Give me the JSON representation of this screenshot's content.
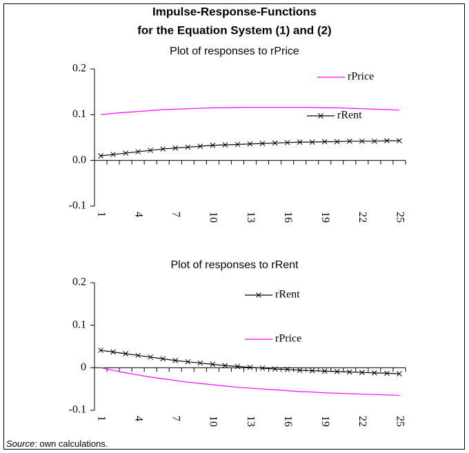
{
  "title": [
    "Impulse-Response-Functions",
    "for the Equation System (1) and (2)"
  ],
  "source": {
    "label": "Source",
    "text": ": own calculations."
  },
  "chart_data": [
    {
      "type": "line",
      "subtitle": "Plot of responses to rPrice",
      "categories": [
        "1",
        null,
        null,
        "4",
        null,
        null,
        "7",
        null,
        null,
        "10",
        null,
        null,
        "13",
        null,
        null,
        "16",
        null,
        null,
        "19",
        null,
        null,
        "22",
        null,
        null,
        "25"
      ],
      "ylim": [
        -0.1,
        0.2
      ],
      "yticks": [
        0.2,
        0.1,
        {
          "value": 0,
          "label": "0.0"
        },
        -0.1
      ],
      "series": [
        {
          "name": "rPrice",
          "color": "#ff00ff",
          "marker": "none",
          "values": [
            0.1,
            0.103,
            0.105,
            0.107,
            0.109,
            0.111,
            0.112,
            0.113,
            0.114,
            0.115,
            0.115,
            0.116,
            0.116,
            0.116,
            0.116,
            0.116,
            0.116,
            0.116,
            0.115,
            0.115,
            0.114,
            0.113,
            0.112,
            0.111,
            0.11
          ]
        },
        {
          "name": "rRent",
          "color": "#000000",
          "marker": "x",
          "values": [
            0.01,
            0.013,
            0.016,
            0.019,
            0.022,
            0.025,
            0.027,
            0.029,
            0.031,
            0.033,
            0.034,
            0.035,
            0.036,
            0.037,
            0.038,
            0.039,
            0.04,
            0.04,
            0.041,
            0.041,
            0.042,
            0.042,
            0.042,
            0.043,
            0.043
          ]
        }
      ]
    },
    {
      "type": "line",
      "subtitle": "Plot of responses to rRent",
      "categories": [
        "1",
        null,
        null,
        "4",
        null,
        null,
        "7",
        null,
        null,
        "10",
        null,
        null,
        "13",
        null,
        null,
        "16",
        null,
        null,
        "19",
        null,
        null,
        "22",
        null,
        null,
        "25"
      ],
      "ylim": [
        -0.1,
        0.2
      ],
      "yticks": [
        0.2,
        0.1,
        0,
        -0.1
      ],
      "series": [
        {
          "name": "rRent",
          "color": "#000000",
          "marker": "x",
          "values": [
            0.041,
            0.037,
            0.033,
            0.029,
            0.025,
            0.021,
            0.017,
            0.014,
            0.011,
            0.008,
            0.005,
            0.003,
            0.001,
            -0.001,
            -0.003,
            -0.004,
            -0.006,
            -0.007,
            -0.008,
            -0.009,
            -0.01,
            -0.011,
            -0.012,
            -0.013,
            -0.014
          ]
        },
        {
          "name": "rPrice",
          "color": "#ff00ff",
          "marker": "none",
          "values": [
            0.0,
            -0.006,
            -0.012,
            -0.017,
            -0.022,
            -0.026,
            -0.03,
            -0.034,
            -0.037,
            -0.04,
            -0.043,
            -0.046,
            -0.048,
            -0.05,
            -0.052,
            -0.054,
            -0.056,
            -0.057,
            -0.059,
            -0.06,
            -0.061,
            -0.062,
            -0.063,
            -0.064,
            -0.065
          ]
        }
      ]
    }
  ]
}
